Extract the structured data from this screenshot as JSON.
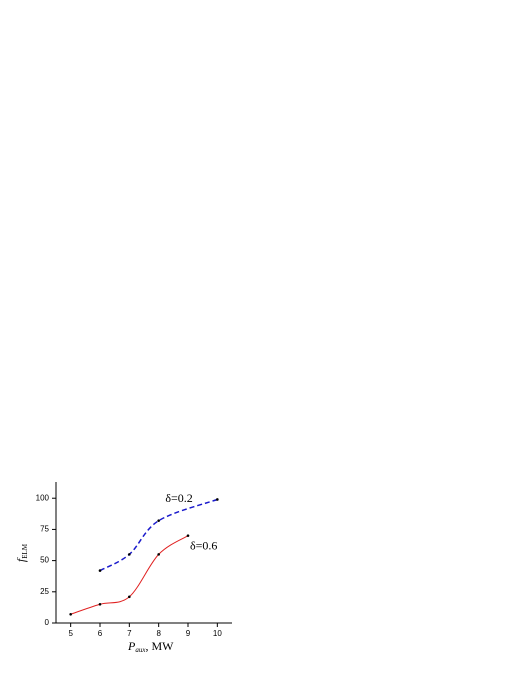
{
  "chart_data": {
    "type": "line",
    "x_label": {
      "symbol": "P",
      "subscript": "aux",
      "unit": ", MW"
    },
    "y_label": {
      "symbol": "f",
      "subscript": "ELM"
    },
    "series": [
      {
        "name": "δ=0.2",
        "color": "#1a1acc",
        "dash": true,
        "x": [
          6,
          7,
          8,
          10
        ],
        "values": [
          42,
          55,
          82,
          99
        ]
      },
      {
        "name": "δ=0.6",
        "color": "#e02020",
        "dash": false,
        "x": [
          5,
          6,
          7,
          8,
          9
        ],
        "values": [
          7,
          15,
          21,
          55,
          70
        ]
      }
    ],
    "xlim": [
      4.5,
      10.5
    ],
    "xticks": [
      5,
      6,
      7,
      8,
      9,
      10
    ],
    "ylim": [
      0,
      113
    ],
    "yticks": [
      0,
      25,
      50,
      75,
      100
    ]
  }
}
